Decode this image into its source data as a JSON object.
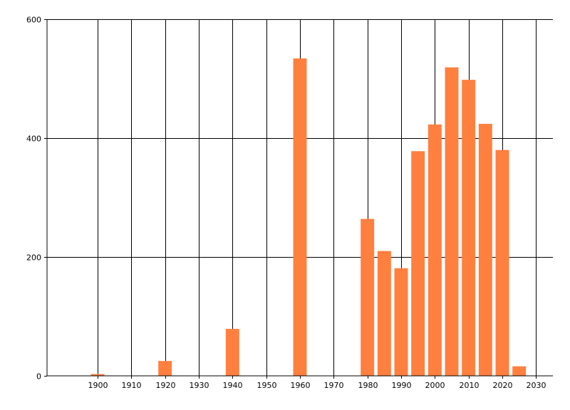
{
  "chart_data": {
    "type": "bar",
    "x": [
      1900,
      1920,
      1940,
      1960,
      1980,
      1985,
      1990,
      1995,
      2000,
      2005,
      2010,
      2015,
      2020,
      2025
    ],
    "values": [
      3,
      25,
      79,
      534,
      264,
      210,
      181,
      378,
      423,
      519,
      498,
      424,
      380,
      16
    ],
    "title": "",
    "xlabel": "",
    "ylabel": "",
    "xlim": [
      1885,
      2035
    ],
    "ylim": [
      0,
      600
    ],
    "x_ticks": [
      "1900",
      "1910",
      "1920",
      "1930",
      "1940",
      "1950",
      "1960",
      "1970",
      "1980",
      "1990",
      "2000",
      "2010",
      "2020",
      "2030"
    ],
    "y_ticks": [
      "0",
      "200",
      "400",
      "600"
    ],
    "grid": "on",
    "bar_color": "#ff7f3f"
  }
}
